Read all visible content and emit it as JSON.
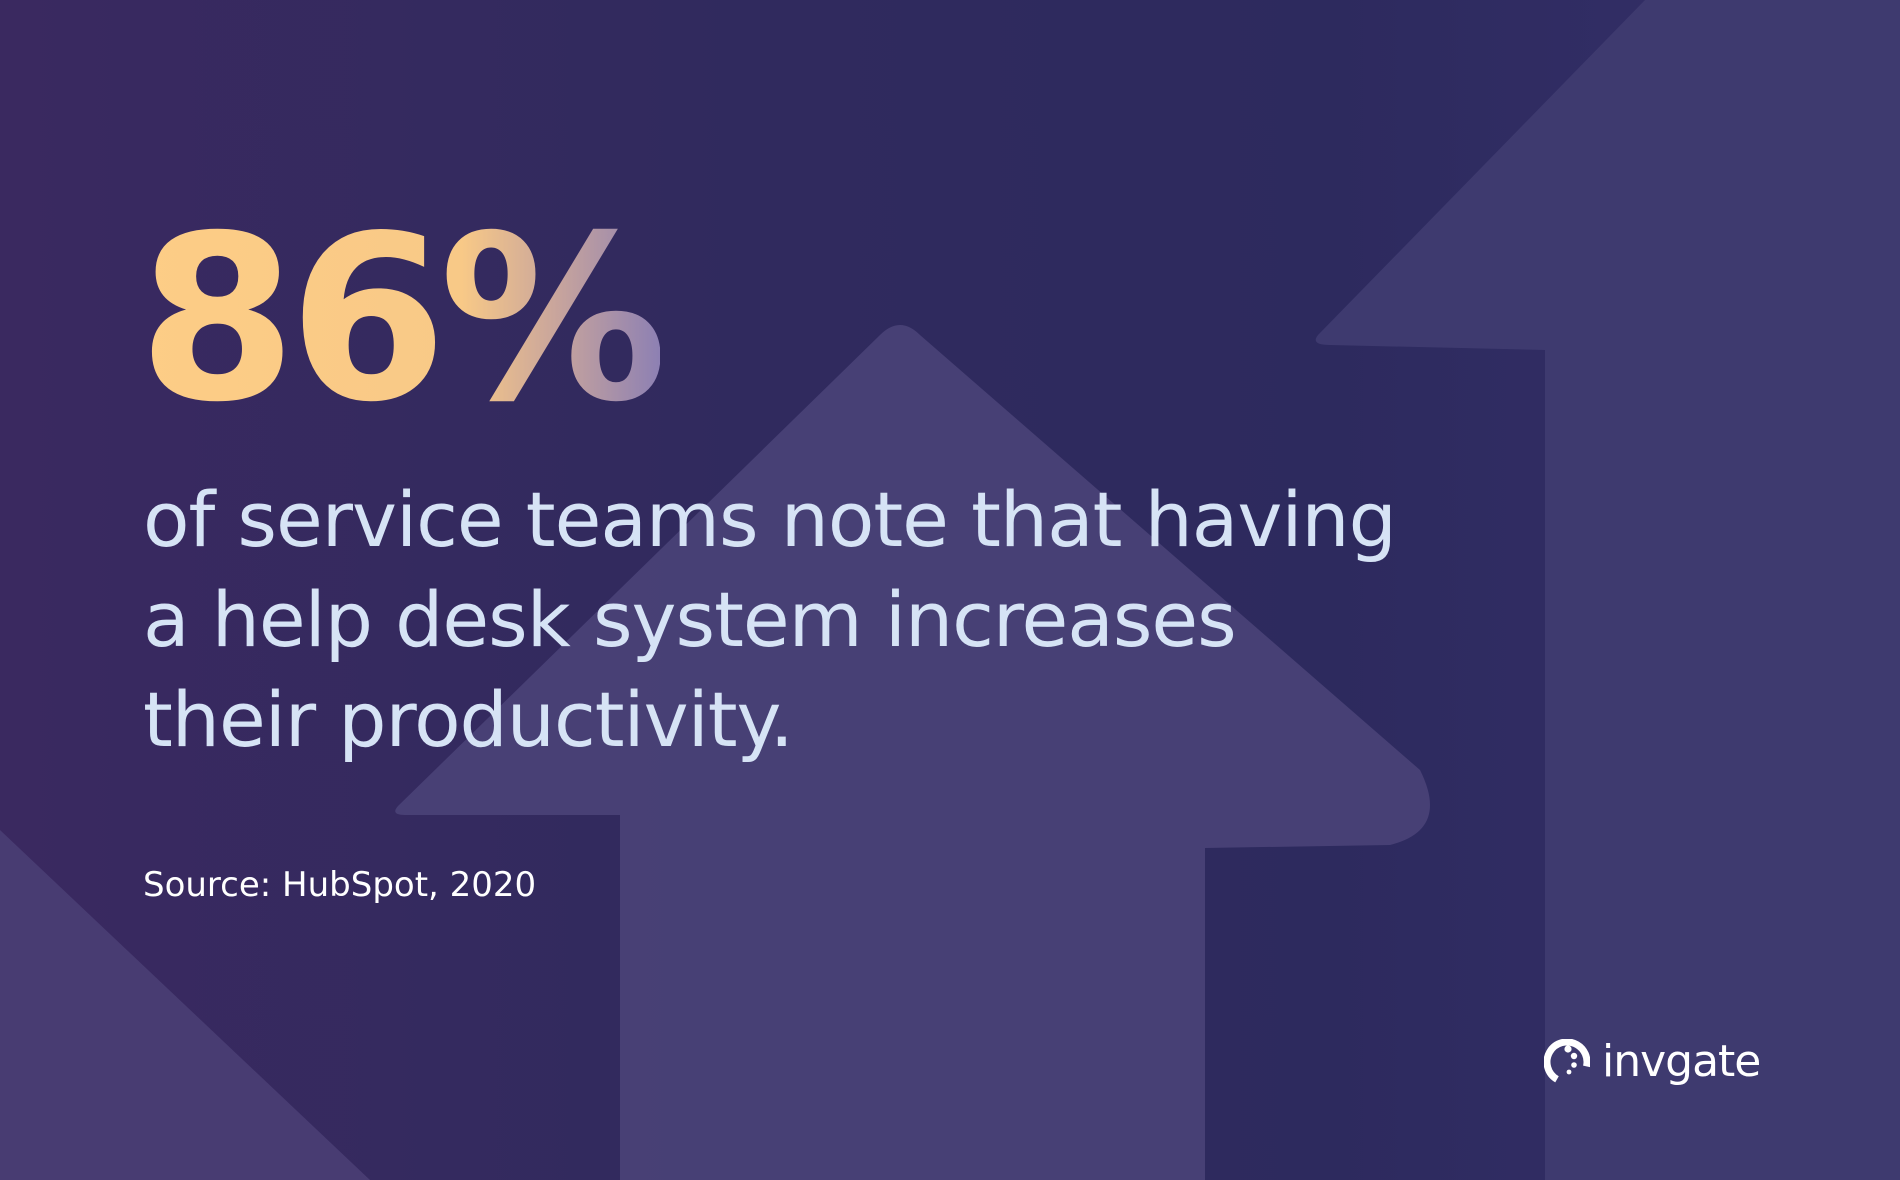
{
  "headline": {
    "stat": "86%"
  },
  "statement": {
    "lines": [
      "of service teams note that having",
      "a help desk system increases",
      "their productivity."
    ]
  },
  "source": {
    "text": "Source: HubSpot, 2020"
  },
  "brand": {
    "name": "invgate",
    "icon": "invgate-logo-icon"
  },
  "colors": {
    "background": "#2d2a5e",
    "arrow_shape": "#4a4378",
    "stat_gradient_start": "#fdcd86",
    "stat_gradient_end": "#8d80b3",
    "statement_text": "#d6e3f5",
    "source_text": "#ffffff"
  },
  "decoration": {
    "icons": [
      "up-arrow-shape-center",
      "up-arrow-shape-right",
      "up-arrow-shape-left"
    ]
  }
}
